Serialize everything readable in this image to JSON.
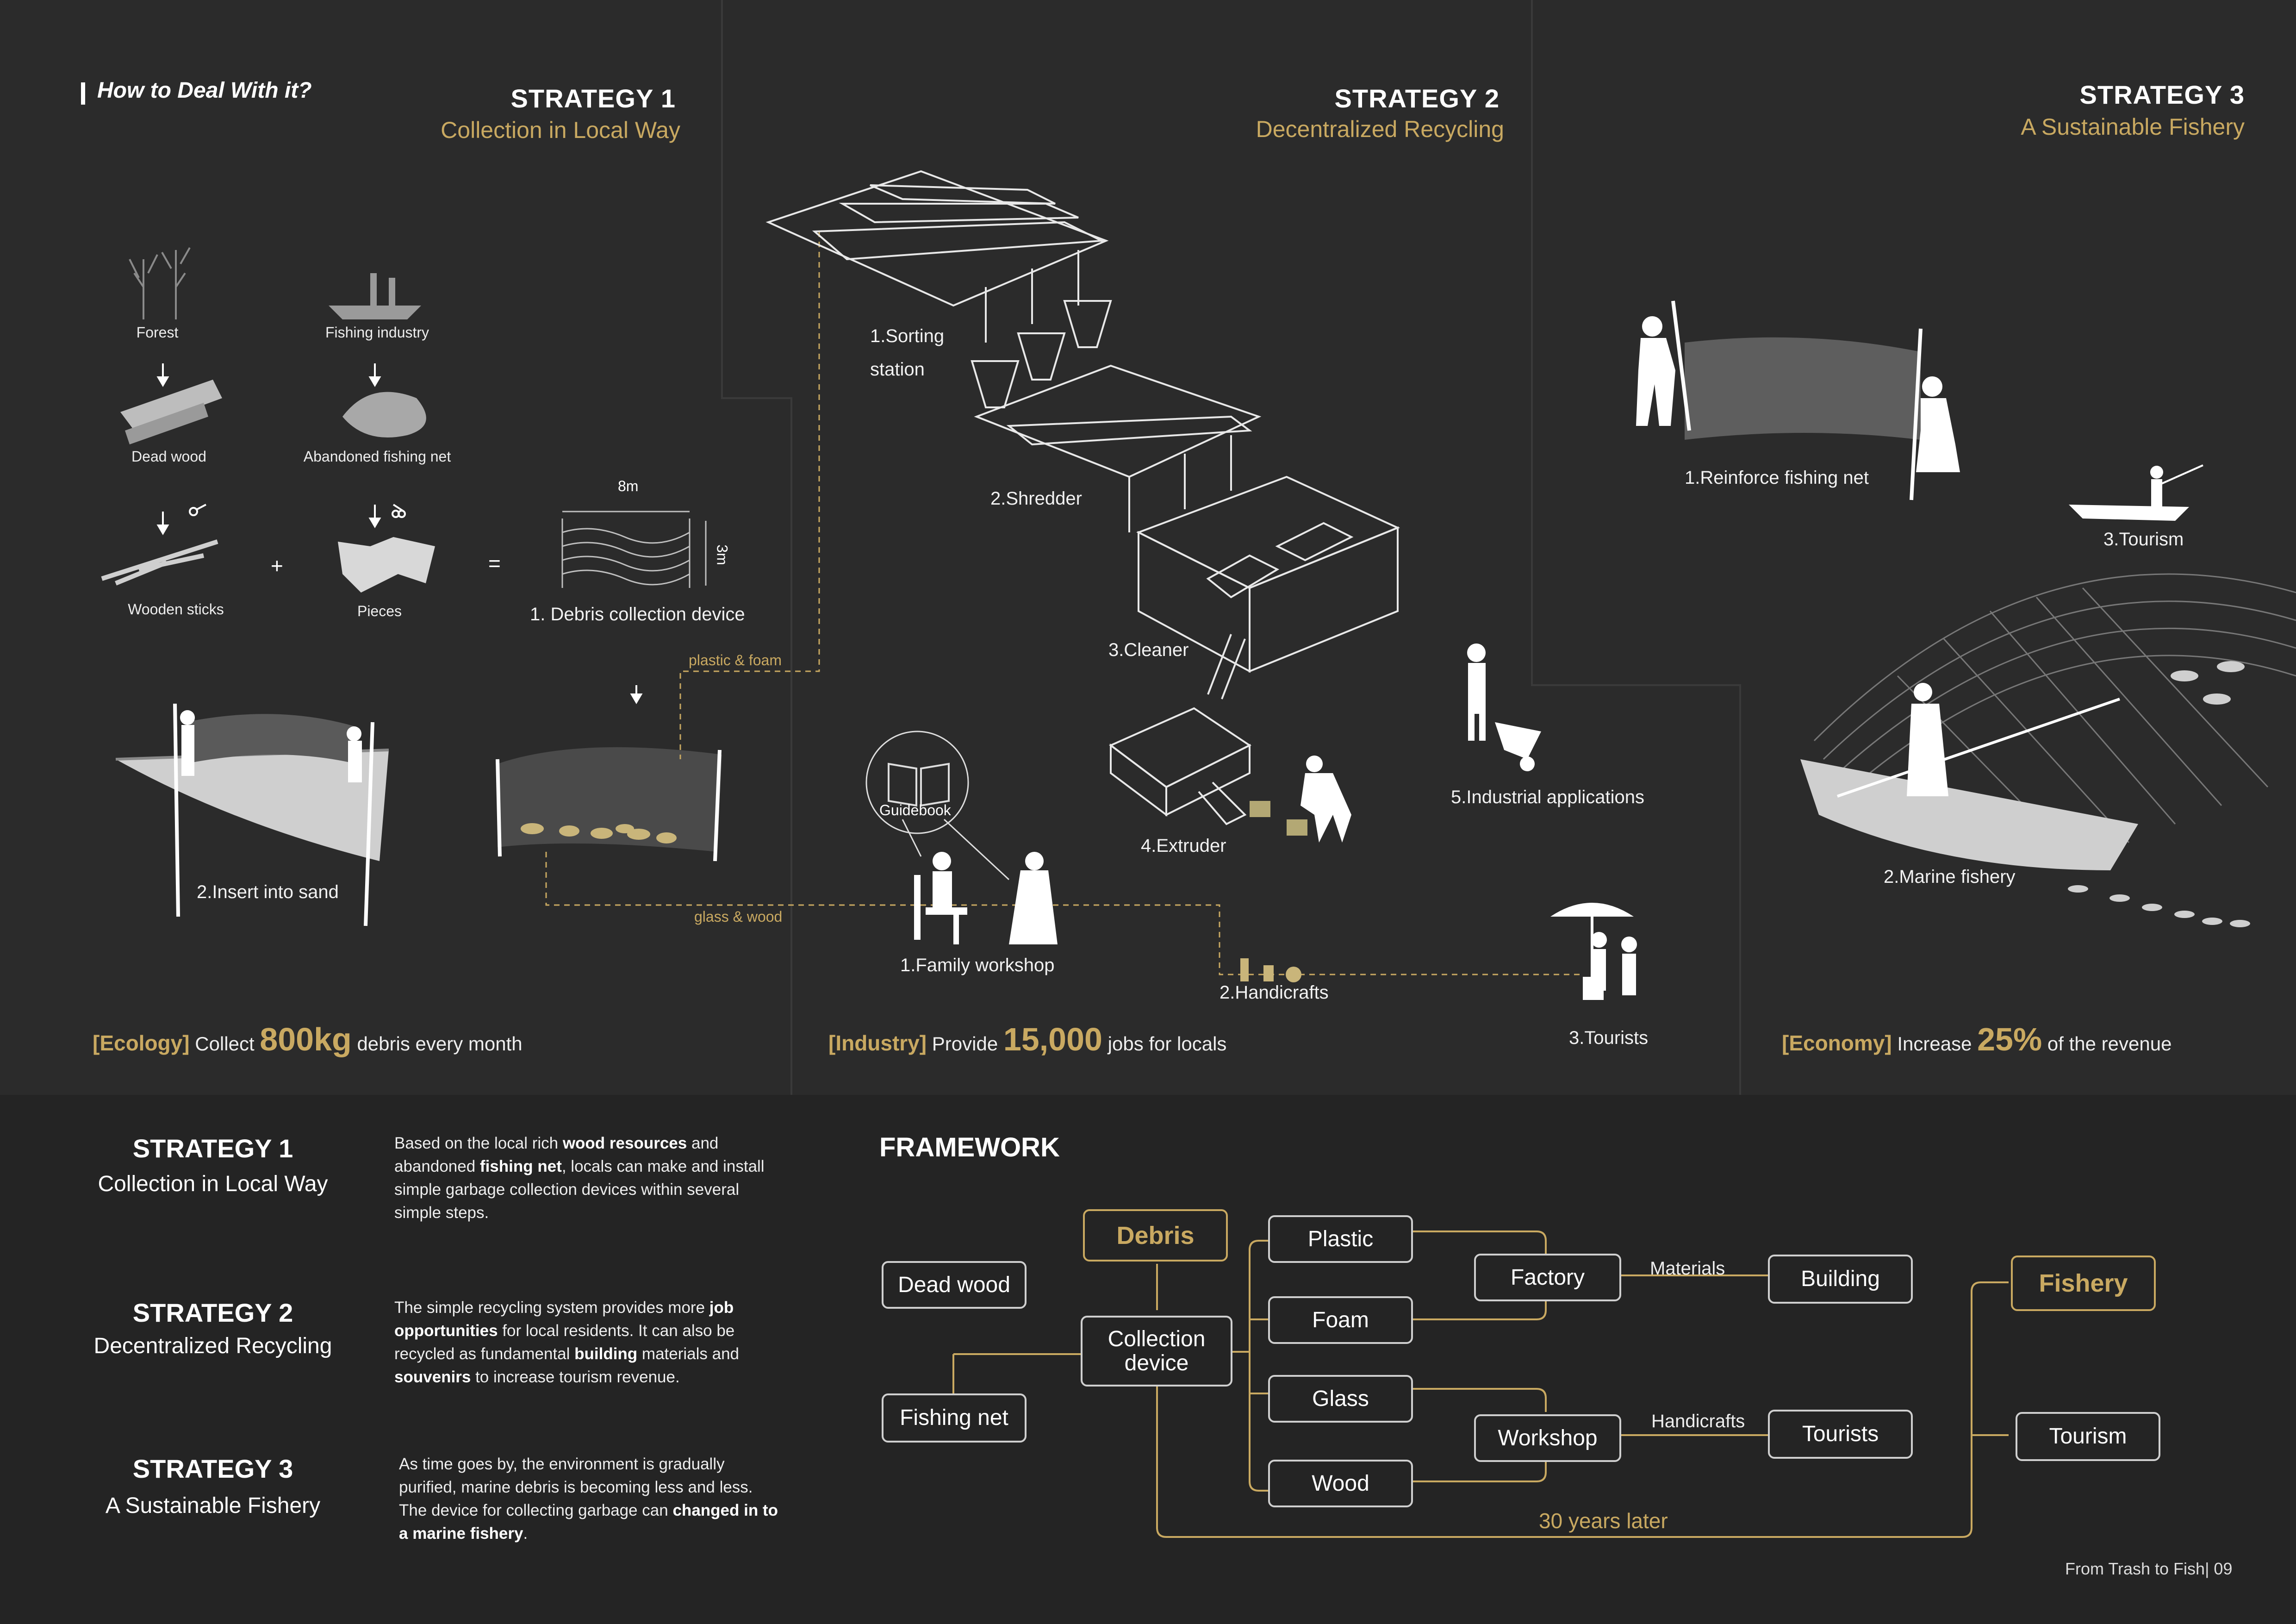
{
  "heading": "How to Deal With it?",
  "strategies_top": [
    {
      "title": "STRATEGY 1",
      "subtitle": "Collection in Local Way"
    },
    {
      "title": "STRATEGY 2",
      "subtitle": "Decentralized Recycling"
    },
    {
      "title": "STRATEGY 3",
      "subtitle": "A Sustainable Fishery"
    }
  ],
  "s1": {
    "forest": "Forest",
    "fishing_industry": "Fishing industry",
    "dead_wood": "Dead wood",
    "abandoned_net": "Abandoned fishing net",
    "wooden_sticks": "Wooden sticks",
    "pieces": "Pieces",
    "plus": "+",
    "equals": "=",
    "dim_w": "8m",
    "dim_h": "3m",
    "device": "1. Debris collection device",
    "insert": "2.Insert into sand",
    "plastic_foam": "plastic & foam",
    "glass_wood": "glass & wood",
    "metric": {
      "tag": "[Ecology]",
      "pre": "Collect",
      "big": "800kg",
      "post": "debris every  month"
    }
  },
  "s2": {
    "sorting": [
      "1.Sorting",
      "station"
    ],
    "shredder": "2.Shredder",
    "cleaner": "3.Cleaner",
    "extruder": "4.Extruder",
    "industrial": "5.Industrial applications",
    "guidebook": "Guidebook",
    "family_workshop": "1.Family workshop",
    "handicrafts": "2.Handicrafts",
    "tourists": "3.Tourists",
    "metric": {
      "tag": "[Industry]",
      "pre": "Provide",
      "big": "15,000",
      "post": "jobs for locals"
    }
  },
  "s3": {
    "reinforce": "1.Reinforce fishing net",
    "tourism": "3.Tourism",
    "marine": "2.Marine fishery",
    "metric": {
      "tag": "[Economy]",
      "pre": "Increase",
      "big": "25%",
      "post": "of the revenue"
    }
  },
  "bottom": [
    {
      "title": "STRATEGY 1",
      "subtitle": "Collection in Local Way",
      "desc": [
        [
          "Based on the local rich ",
          false
        ],
        [
          "wood resources",
          true
        ],
        [
          " and abandoned ",
          false
        ],
        [
          "fishing net",
          true
        ],
        [
          ", locals can make and install simple garbage collection devices within several simple steps.",
          false
        ]
      ]
    },
    {
      "title": "STRATEGY 2",
      "subtitle": "Decentralized Recycling",
      "desc": [
        [
          "The simple recycling system provides more ",
          false
        ],
        [
          "job opportunities",
          true
        ],
        [
          " for local residents. It can also be recycled as fundamental ",
          false
        ],
        [
          "building",
          true
        ],
        [
          " materials and ",
          false
        ],
        [
          "souvenirs",
          true
        ],
        [
          " to increase tourism revenue.",
          false
        ]
      ]
    },
    {
      "title": "STRATEGY 3",
      "subtitle": "A Sustainable Fishery",
      "desc": [
        [
          "As time goes by, the environment is gradually purified, marine debris is becoming less and less. The device for collecting garbage can ",
          false
        ],
        [
          "changed in to a marine fishery",
          true
        ],
        [
          ".",
          false
        ]
      ]
    }
  ],
  "framework": {
    "title": "FRAMEWORK",
    "dead_wood": "Dead wood",
    "fishing_net": "Fishing net",
    "debris": "Debris",
    "collection": [
      "Collection",
      "device"
    ],
    "plastic": "Plastic",
    "foam": "Foam",
    "glass": "Glass",
    "wood": "Wood",
    "factory": "Factory",
    "workshop": "Workshop",
    "materials": "Materials",
    "handicrafts": "Handicrafts",
    "building": "Building",
    "tourists": "Tourists",
    "fishery": "Fishery",
    "tourism": "Tourism",
    "years": "30 years later"
  },
  "footer": "From Trash to Fish| 09",
  "colors": {
    "bg": "#2b2b2b",
    "gold": "#c9a961",
    "white": "#ffffff"
  }
}
